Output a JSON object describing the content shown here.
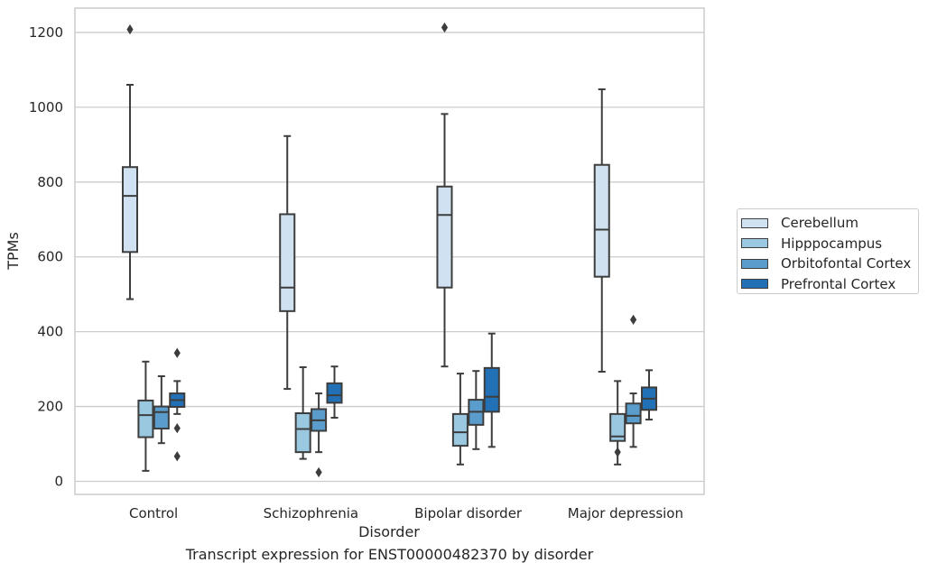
{
  "chart_data": {
    "type": "box",
    "title": "Transcript expression for ENST00000482370 by disorder",
    "xlabel": "Disorder",
    "ylabel": "TPMs",
    "ylim": [
      -35,
      1265
    ],
    "yticks": [
      0,
      200,
      400,
      600,
      800,
      1000,
      1200
    ],
    "categories": [
      "Control",
      "Schizophrenia",
      "Bipolar disorder",
      "Major depression"
    ],
    "grid": "horizontal",
    "legend_position": "right",
    "series": [
      {
        "name": "Cerebellum",
        "color": "#d0e2f2",
        "boxes": [
          {
            "whislo": 487,
            "q1": 613,
            "med": 763,
            "q3": 840,
            "whishi": 1060,
            "fliers": [
              1208
            ]
          },
          {
            "whislo": 247,
            "q1": 455,
            "med": 518,
            "q3": 714,
            "whishi": 923,
            "fliers": []
          },
          {
            "whislo": 307,
            "q1": 518,
            "med": 712,
            "q3": 788,
            "whishi": 982,
            "fliers": [
              1213
            ]
          },
          {
            "whislo": 293,
            "q1": 547,
            "med": 673,
            "q3": 846,
            "whishi": 1048,
            "fliers": []
          }
        ]
      },
      {
        "name": "Hipppocampus",
        "color": "#9ac8e0",
        "boxes": [
          {
            "whislo": 28,
            "q1": 118,
            "med": 177,
            "q3": 216,
            "whishi": 320,
            "fliers": []
          },
          {
            "whislo": 60,
            "q1": 78,
            "med": 140,
            "q3": 182,
            "whishi": 305,
            "fliers": []
          },
          {
            "whislo": 45,
            "q1": 95,
            "med": 131,
            "q3": 180,
            "whishi": 288,
            "fliers": []
          },
          {
            "whislo": 45,
            "q1": 108,
            "med": 120,
            "q3": 180,
            "whishi": 268,
            "fliers": [
              78
            ]
          }
        ]
      },
      {
        "name": "Orbitofontal Cortex",
        "color": "#5a9dcc",
        "boxes": [
          {
            "whislo": 102,
            "q1": 141,
            "med": 185,
            "q3": 200,
            "whishi": 281,
            "fliers": []
          },
          {
            "whislo": 78,
            "q1": 135,
            "med": 163,
            "q3": 193,
            "whishi": 235,
            "fliers": [
              24
            ]
          },
          {
            "whislo": 86,
            "q1": 151,
            "med": 186,
            "q3": 218,
            "whishi": 295,
            "fliers": []
          },
          {
            "whislo": 92,
            "q1": 155,
            "med": 175,
            "q3": 208,
            "whishi": 235,
            "fliers": [
              432
            ]
          }
        ]
      },
      {
        "name": "Prefrontal Cortex",
        "color": "#2270b5",
        "boxes": [
          {
            "whislo": 180,
            "q1": 199,
            "med": 217,
            "q3": 235,
            "whishi": 268,
            "fliers": [
              343,
              142,
              67
            ]
          },
          {
            "whislo": 170,
            "q1": 210,
            "med": 230,
            "q3": 262,
            "whishi": 307,
            "fliers": []
          },
          {
            "whislo": 92,
            "q1": 186,
            "med": 226,
            "q3": 303,
            "whishi": 395,
            "fliers": []
          },
          {
            "whislo": 165,
            "q1": 191,
            "med": 221,
            "q3": 251,
            "whishi": 297,
            "fliers": []
          }
        ]
      }
    ]
  }
}
